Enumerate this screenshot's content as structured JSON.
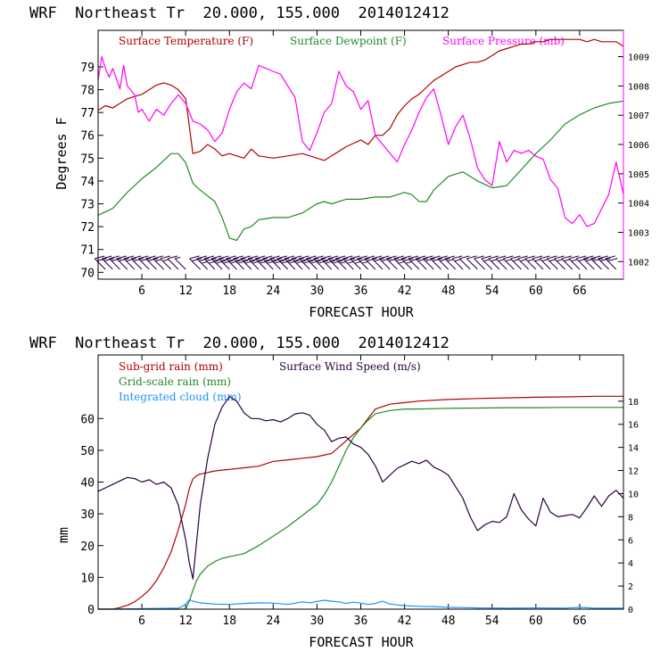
{
  "colors": {
    "temperature": "#b00000",
    "dewpoint": "#228b22",
    "pressure": "#ff00ff",
    "subgrid_rain": "#b00000",
    "gridscale_rain": "#228b22",
    "cloud": "#1e90ff",
    "wind": "#2a0040",
    "barb": "#2a0040"
  },
  "chart_data": [
    {
      "type": "line",
      "title": "WRF  Northeast Tr  20.000, 155.000  2014012412",
      "xlabel": "FORECAST HOUR",
      "ylabel": "Degrees F",
      "y2label": "",
      "xlim": [
        0,
        72
      ],
      "ylim": [
        69.7,
        80.6
      ],
      "y2lim": [
        1001.4,
        1009.9
      ],
      "xticks": [
        6,
        12,
        18,
        24,
        30,
        36,
        42,
        48,
        54,
        60,
        66
      ],
      "xtick_labels": [
        "6",
        "12",
        "18",
        "24",
        "30",
        "36",
        "42",
        "48",
        "54",
        "60",
        "66"
      ],
      "yticks": [
        70,
        71,
        72,
        73,
        74,
        75,
        76,
        77,
        78,
        79
      ],
      "ytick_labels": [
        "70",
        "71",
        "72",
        "73",
        "74",
        "75",
        "76",
        "77",
        "78",
        "79"
      ],
      "y2ticks": [
        1002,
        1003,
        1004,
        1005,
        1006,
        1007,
        1008,
        1009
      ],
      "y2tick_labels": [
        "1002",
        "1003",
        "1004",
        "1005",
        "1006",
        "1007",
        "1008",
        "1009"
      ],
      "legend": [
        "Surface Temperature (F)",
        "Surface Dewpoint (F)",
        "Surface Pressure (mb)"
      ],
      "legend_position": "top",
      "series": [
        {
          "name": "Surface Temperature (F)",
          "axis": "left",
          "x": [
            0,
            1,
            2,
            3,
            4,
            5,
            6,
            7,
            8,
            9,
            10,
            11,
            12,
            13,
            14,
            15,
            16,
            17,
            18,
            19,
            20,
            21,
            22,
            24,
            26,
            28,
            30,
            31,
            32,
            34,
            36,
            37,
            38,
            39,
            40,
            41,
            42,
            43,
            44,
            45,
            46,
            47,
            48,
            49,
            50,
            51,
            52,
            53,
            54,
            55,
            56,
            57,
            58,
            59,
            60,
            61,
            62,
            63,
            64,
            65,
            66,
            67,
            68,
            69,
            70,
            71,
            72
          ],
          "y": [
            77.1,
            77.3,
            77.2,
            77.4,
            77.6,
            77.7,
            77.8,
            78.0,
            78.2,
            78.3,
            78.2,
            78.0,
            77.6,
            75.2,
            75.3,
            75.6,
            75.4,
            75.1,
            75.2,
            75.1,
            75.0,
            75.4,
            75.1,
            75.0,
            75.1,
            75.2,
            75.0,
            74.9,
            75.1,
            75.5,
            75.8,
            75.6,
            76.0,
            76.0,
            76.3,
            76.9,
            77.3,
            77.6,
            77.8,
            78.1,
            78.4,
            78.6,
            78.8,
            79.0,
            79.1,
            79.2,
            79.2,
            79.3,
            79.5,
            79.7,
            79.8,
            79.9,
            80.0,
            80.0,
            80.1,
            80.1,
            80.2,
            80.2,
            80.2,
            80.2,
            80.2,
            80.1,
            80.2,
            80.1,
            80.1,
            80.1,
            79.9
          ]
        },
        {
          "name": "Surface Dewpoint (F)",
          "axis": "left",
          "x": [
            0,
            2,
            4,
            6,
            8,
            10,
            11,
            12,
            13,
            14,
            16,
            17,
            18,
            19,
            20,
            21,
            22,
            24,
            26,
            28,
            30,
            31,
            32,
            34,
            36,
            38,
            40,
            42,
            43,
            44,
            45,
            46,
            48,
            50,
            52,
            54,
            56,
            58,
            60,
            62,
            64,
            66,
            68,
            70,
            72
          ],
          "y": [
            72.5,
            72.8,
            73.5,
            74.1,
            74.6,
            75.2,
            75.2,
            74.8,
            73.9,
            73.6,
            73.1,
            72.4,
            71.5,
            71.4,
            71.9,
            72.0,
            72.3,
            72.4,
            72.4,
            72.6,
            73.0,
            73.1,
            73.0,
            73.2,
            73.2,
            73.3,
            73.3,
            73.5,
            73.4,
            73.1,
            73.1,
            73.6,
            74.2,
            74.4,
            74.0,
            73.7,
            73.8,
            74.5,
            75.2,
            75.8,
            76.5,
            76.9,
            77.2,
            77.4,
            77.5
          ]
        },
        {
          "name": "Surface Pressure (mb)",
          "axis": "right",
          "x": [
            0,
            0.5,
            1,
            1.5,
            2,
            3,
            3.5,
            4,
            5,
            5.5,
            6,
            7,
            8,
            9,
            10,
            11,
            12,
            13,
            14,
            15,
            16,
            17,
            18,
            19,
            20,
            21,
            22,
            23,
            24,
            25,
            26,
            27,
            28,
            29,
            30,
            31,
            32,
            33,
            34,
            35,
            36,
            37,
            38,
            39,
            40,
            41,
            42,
            43,
            44,
            45,
            46,
            47,
            48,
            49,
            50,
            51,
            52,
            53,
            54,
            55,
            56,
            57,
            58,
            59,
            60,
            61,
            62,
            63,
            64,
            65,
            66,
            67,
            68,
            69,
            70,
            71,
            72
          ],
          "y": [
            1008.2,
            1009.0,
            1008.6,
            1008.3,
            1008.6,
            1007.9,
            1008.7,
            1008.0,
            1007.7,
            1007.1,
            1007.2,
            1006.8,
            1007.2,
            1007.0,
            1007.4,
            1007.7,
            1007.4,
            1006.8,
            1006.7,
            1006.5,
            1006.1,
            1006.4,
            1007.2,
            1007.8,
            1008.1,
            1007.9,
            1008.7,
            1008.6,
            1008.5,
            1008.4,
            1008.0,
            1007.6,
            1006.1,
            1005.8,
            1006.4,
            1007.1,
            1007.4,
            1008.5,
            1008.0,
            1007.8,
            1007.2,
            1007.5,
            1006.3,
            1006.0,
            1005.7,
            1005.4,
            1006.0,
            1006.5,
            1007.1,
            1007.6,
            1007.9,
            1007.0,
            1006.0,
            1006.6,
            1007.0,
            1006.2,
            1005.2,
            1004.8,
            1004.6,
            1006.1,
            1005.4,
            1005.8,
            1005.7,
            1005.8,
            1005.6,
            1005.5,
            1004.8,
            1004.5,
            1003.5,
            1003.3,
            1003.6,
            1003.2,
            1003.3,
            1003.8,
            1004.3,
            1005.4,
            1004.3
          ]
        }
      ],
      "wind_barbs": {
        "x": [
          1,
          2,
          3,
          4,
          5,
          6,
          7,
          8,
          9,
          10,
          11,
          12,
          14,
          15,
          16,
          17,
          18,
          19,
          20,
          21,
          22,
          23,
          24,
          25,
          26,
          27,
          28,
          29,
          30,
          31,
          32,
          33,
          34,
          35,
          36,
          37,
          38,
          39,
          40,
          41,
          42,
          43,
          44,
          45,
          46,
          47,
          48,
          49,
          50,
          51,
          52,
          53,
          54,
          55,
          56,
          57,
          58,
          59,
          60,
          61,
          62,
          63,
          64,
          65,
          66,
          67,
          68,
          69,
          70,
          71
        ],
        "speed_ms": [
          10,
          10,
          11,
          11,
          11,
          10,
          10,
          10,
          9,
          8,
          6,
          4,
          10,
          14,
          16,
          17,
          17,
          17,
          17,
          16,
          16,
          16,
          16,
          16,
          16,
          16,
          16,
          16,
          15,
          15,
          15,
          15,
          14,
          14,
          14,
          13,
          12,
          12,
          11,
          12,
          13,
          13,
          12,
          12,
          11,
          11,
          10,
          9,
          8,
          7,
          7,
          7,
          8,
          8,
          9,
          8,
          8,
          8,
          8,
          9,
          9,
          9,
          9,
          9,
          9,
          10,
          10,
          10,
          10,
          10
        ]
      }
    },
    {
      "type": "line",
      "title": "WRF  Northeast Tr  20.000, 155.000  2014012412",
      "xlabel": "FORECAST HOUR",
      "ylabel": "mm",
      "y2label": "",
      "xlim": [
        0,
        72
      ],
      "ylim": [
        0,
        80
      ],
      "y2lim": [
        0,
        22
      ],
      "xticks": [
        6,
        12,
        18,
        24,
        30,
        36,
        42,
        48,
        54,
        60,
        66
      ],
      "xtick_labels": [
        "6",
        "12",
        "18",
        "24",
        "30",
        "36",
        "42",
        "48",
        "54",
        "60",
        "66"
      ],
      "yticks": [
        0,
        10,
        20,
        30,
        40,
        50,
        60
      ],
      "ytick_labels": [
        "0",
        "10",
        "20",
        "30",
        "40",
        "50",
        "60"
      ],
      "y2ticks": [
        0,
        2,
        4,
        6,
        8,
        10,
        12,
        14,
        16,
        18
      ],
      "y2tick_labels": [
        "0",
        "2",
        "4",
        "6",
        "8",
        "10",
        "12",
        "14",
        "16",
        "18"
      ],
      "legend": [
        "Sub-grid rain (mm)",
        "Grid-scale rain (mm)",
        "Integrated cloud (mm)",
        "Surface Wind Speed (m/s)"
      ],
      "legend_position": "top",
      "series": [
        {
          "name": "Sub-grid rain (mm)",
          "axis": "left",
          "x": [
            0,
            2,
            3,
            4,
            5,
            6,
            7,
            8,
            9,
            10,
            11,
            12,
            12.5,
            13,
            13.5,
            14,
            15,
            16,
            18,
            20,
            22,
            24,
            26,
            28,
            30,
            32,
            33,
            34,
            35,
            36,
            37,
            38,
            40,
            42,
            44,
            48,
            52,
            56,
            60,
            64,
            68,
            72
          ],
          "y": [
            0,
            0,
            0.5,
            1.2,
            2.3,
            4.0,
            6.0,
            9.0,
            13.0,
            18.0,
            25.0,
            33.0,
            38.0,
            41.0,
            42.0,
            42.5,
            43.0,
            43.5,
            44.0,
            44.5,
            45.0,
            46.5,
            47.0,
            47.5,
            48.0,
            49.0,
            51.0,
            53.0,
            55.0,
            57.0,
            60.0,
            63.0,
            64.5,
            65.0,
            65.5,
            66.0,
            66.3,
            66.5,
            66.7,
            66.8,
            67.0,
            67.0
          ]
        },
        {
          "name": "Grid-scale rain (mm)",
          "axis": "left",
          "x": [
            0,
            12,
            12.5,
            13,
            13.5,
            14,
            15,
            16,
            17,
            18,
            19,
            20,
            22,
            24,
            26,
            28,
            30,
            31,
            32,
            33,
            34,
            35,
            36,
            37,
            38,
            40,
            42,
            44,
            48,
            52,
            56,
            60,
            64,
            68,
            72
          ],
          "y": [
            0,
            0,
            2.5,
            6.0,
            9.0,
            11.0,
            13.5,
            15.0,
            16.0,
            16.5,
            17.0,
            17.5,
            20.0,
            23.0,
            26.0,
            29.5,
            33.0,
            36.0,
            40.0,
            45.0,
            50.0,
            54.0,
            57.0,
            59.5,
            61.5,
            62.5,
            63.0,
            63.0,
            63.2,
            63.3,
            63.4,
            63.4,
            63.5,
            63.5,
            63.5
          ]
        },
        {
          "name": "Integrated cloud (mm)",
          "axis": "left",
          "x": [
            0,
            11,
            12,
            12.5,
            13,
            14,
            15,
            16,
            18,
            20,
            22,
            24,
            26,
            28,
            29,
            30,
            31,
            32,
            33,
            34,
            35,
            36,
            37,
            38,
            39,
            40,
            42,
            44,
            46,
            48,
            50,
            52,
            56,
            60,
            64,
            66,
            68,
            72
          ],
          "y": [
            0,
            0.3,
            1.5,
            3.0,
            2.5,
            2.0,
            1.8,
            1.6,
            1.5,
            1.8,
            2.0,
            1.9,
            1.5,
            2.3,
            2.0,
            2.4,
            2.8,
            2.5,
            2.3,
            1.8,
            2.2,
            1.9,
            1.5,
            1.8,
            2.5,
            1.6,
            1.1,
            0.9,
            0.8,
            0.6,
            0.5,
            0.4,
            0.3,
            0.4,
            0.3,
            0.6,
            0.3,
            0.3
          ]
        },
        {
          "name": "Surface Wind Speed (m/s)",
          "axis": "right",
          "x": [
            0,
            1,
            2,
            3,
            4,
            5,
            6,
            7,
            8,
            9,
            10,
            11,
            12,
            12.5,
            13,
            14,
            15,
            16,
            17,
            18,
            19,
            20,
            21,
            22,
            23,
            24,
            25,
            26,
            27,
            28,
            29,
            30,
            31,
            32,
            33,
            34,
            35,
            36,
            37,
            38,
            39,
            40,
            41,
            42,
            43,
            44,
            45,
            46,
            47,
            48,
            49,
            50,
            51,
            52,
            53,
            54,
            55,
            56,
            57,
            58,
            59,
            60,
            61,
            62,
            63,
            64,
            65,
            66,
            67,
            68,
            69,
            70,
            71,
            72
          ],
          "y": [
            10.2,
            10.5,
            10.8,
            11.1,
            11.4,
            11.3,
            11.0,
            11.2,
            10.8,
            11.0,
            10.5,
            9.0,
            6.0,
            4.0,
            2.6,
            9.0,
            13.0,
            16.0,
            17.5,
            18.4,
            18.0,
            17.0,
            16.5,
            16.5,
            16.3,
            16.4,
            16.2,
            16.5,
            16.9,
            17.0,
            16.8,
            16.0,
            15.5,
            14.5,
            14.8,
            14.9,
            14.3,
            14.0,
            13.4,
            12.4,
            11.0,
            11.6,
            12.2,
            12.5,
            12.8,
            12.6,
            12.9,
            12.3,
            12.0,
            11.6,
            10.6,
            9.6,
            8.0,
            6.8,
            7.3,
            7.6,
            7.5,
            8.0,
            10.0,
            8.6,
            7.8,
            7.2,
            9.6,
            8.4,
            8.0,
            8.1,
            8.2,
            7.9,
            8.8,
            9.8,
            8.9,
            9.8,
            10.3,
            9.6
          ]
        }
      ]
    }
  ]
}
